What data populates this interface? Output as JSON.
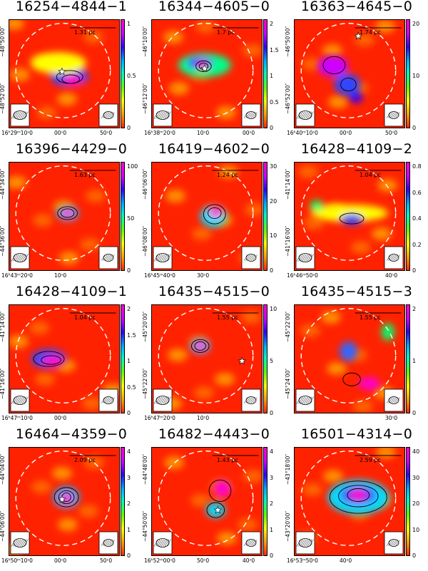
{
  "panels": [
    {
      "title": "16254−4844−1",
      "scale": "1.31 pc",
      "yticks": [
        "−48°50′00″",
        "−48°52′00″"
      ],
      "xticks": [
        "16ʰ29ᵐ10ˢ0",
        "00ˢ0",
        "50ˢ0"
      ],
      "cticks": [
        "1",
        "0.5",
        "0"
      ],
      "blobs": [
        [
          0.55,
          0.53,
          0.17,
          0.09,
          "#3344ff"
        ],
        [
          0.58,
          0.56,
          0.09,
          0.05,
          "#ff00cc"
        ],
        [
          0.45,
          0.4,
          0.25,
          0.1,
          "#ffff00"
        ]
      ],
      "contours": [
        [
          0.55,
          0.53,
          0.12,
          0.06
        ],
        [
          0.56,
          0.55,
          0.08,
          0.04
        ]
      ],
      "stars": [
        [
          0.48,
          0.48
        ]
      ]
    },
    {
      "title": "16344−4605−0",
      "scale": "1.7 pc",
      "yticks": [
        "−46°10′00″",
        "−46°12′00″"
      ],
      "xticks": [
        "16ʰ38ᵐ20ˢ0",
        "10ˢ0",
        "00ˢ0"
      ],
      "cticks": [
        "2",
        "1.5",
        "1",
        "0.5",
        "0"
      ],
      "blobs": [
        [
          0.48,
          0.42,
          0.24,
          0.11,
          "#00ff88"
        ],
        [
          0.44,
          0.4,
          0.12,
          0.06,
          "#3344ff"
        ],
        [
          0.46,
          0.42,
          0.05,
          0.04,
          "#ff00cc"
        ]
      ],
      "contours": [
        [
          0.47,
          0.43,
          0.07,
          0.05
        ],
        [
          0.47,
          0.43,
          0.04,
          0.03
        ]
      ],
      "stars": [
        [
          0.48,
          0.45
        ]
      ]
    },
    {
      "title": "16363−4645−0",
      "scale": "1.74 pc",
      "yticks": [
        "−46°50′00″",
        "−46°52′00″"
      ],
      "xticks": [
        "16ʰ40ᵐ10ˢ0",
        "00ˢ0",
        "50ˢ0"
      ],
      "cticks": [
        "20",
        "10",
        "0"
      ],
      "blobs": [
        [
          0.35,
          0.43,
          0.14,
          0.1,
          "#cc00ff"
        ],
        [
          0.48,
          0.6,
          0.12,
          0.1,
          "#3344ff"
        ],
        [
          0.56,
          0.72,
          0.06,
          0.05,
          "#3300ff"
        ]
      ],
      "contours": [
        [
          0.36,
          0.42,
          0.1,
          0.08
        ],
        [
          0.49,
          0.6,
          0.07,
          0.06
        ]
      ],
      "stars": [
        [
          0.58,
          0.15
        ]
      ]
    },
    {
      "title": "16396−4429−0",
      "scale": "1.63 pc",
      "yticks": [
        "−44°34′00″",
        "−44°36′00″"
      ],
      "xticks": [
        "16ʰ43ᵐ20ˢ0",
        "10ˢ0",
        ""
      ],
      "cticks": [
        "100",
        "50",
        "0"
      ],
      "blobs": [
        [
          0.53,
          0.47,
          0.1,
          0.07,
          "#00aaff"
        ],
        [
          0.53,
          0.47,
          0.05,
          0.04,
          "#ff00cc"
        ]
      ],
      "contours": [
        [
          0.53,
          0.47,
          0.09,
          0.06
        ],
        [
          0.53,
          0.47,
          0.06,
          0.04
        ]
      ],
      "stars": []
    },
    {
      "title": "16419−4602−0",
      "scale": "1.24 pc",
      "yticks": [
        "−46°06′00″",
        "−46°08′00″"
      ],
      "xticks": [
        "16ʰ45ᵐ40ˢ0",
        "30ˢ0",
        ""
      ],
      "cticks": [
        "30",
        "20",
        "10",
        "0"
      ],
      "blobs": [
        [
          0.56,
          0.5,
          0.12,
          0.1,
          "#00ddff"
        ],
        [
          0.58,
          0.46,
          0.06,
          0.05,
          "#ff00cc"
        ]
      ],
      "contours": [
        [
          0.57,
          0.48,
          0.1,
          0.09
        ],
        [
          0.57,
          0.47,
          0.06,
          0.05
        ]
      ],
      "stars": []
    },
    {
      "title": "16428−4109−2",
      "scale": "1.04 pc",
      "yticks": [
        "−41°14′00″",
        "−41°16′00″"
      ],
      "xticks": [
        "16ʰ46ᵐ50ˢ0",
        "",
        "40ˢ0"
      ],
      "cticks": [
        "0.8",
        "0.6",
        "0.4",
        "0.2",
        "0"
      ],
      "blobs": [
        [
          0.5,
          0.47,
          0.35,
          0.08,
          "#ffff00"
        ],
        [
          0.52,
          0.53,
          0.1,
          0.05,
          "#3344ff"
        ],
        [
          0.2,
          0.4,
          0.06,
          0.05,
          "#00ff66"
        ]
      ],
      "contours": [
        [
          0.52,
          0.52,
          0.11,
          0.05
        ]
      ],
      "stars": []
    },
    {
      "title": "16428−4109−1",
      "scale": "1.04 pc",
      "yticks": [
        "−41°14′00″",
        "−41°16′00″"
      ],
      "xticks": [
        "16ʰ47ᵐ10ˢ0",
        "00ˢ0",
        ""
      ],
      "cticks": [
        "2",
        "1.5",
        "1",
        "0.5",
        "0"
      ],
      "blobs": [
        [
          0.36,
          0.5,
          0.16,
          0.09,
          "#3344ff"
        ],
        [
          0.4,
          0.52,
          0.1,
          0.05,
          "#ff00cc"
        ]
      ],
      "contours": [
        [
          0.36,
          0.5,
          0.14,
          0.07
        ],
        [
          0.38,
          0.51,
          0.09,
          0.04
        ]
      ],
      "stars": []
    },
    {
      "title": "16435−4515−0",
      "scale": "1.55 pc",
      "yticks": [
        "−45°20′00″",
        "−45°22′00″"
      ],
      "xticks": [
        "16ʰ47ᵐ20ˢ0",
        "10ˢ0",
        ""
      ],
      "cticks": [
        "10",
        "5",
        "0"
      ],
      "blobs": [
        [
          0.44,
          0.38,
          0.09,
          0.07,
          "#00aaff"
        ],
        [
          0.44,
          0.38,
          0.05,
          0.04,
          "#ff00cc"
        ]
      ],
      "contours": [
        [
          0.44,
          0.38,
          0.08,
          0.06
        ],
        [
          0.44,
          0.38,
          0.05,
          0.04
        ]
      ],
      "stars": [
        [
          0.82,
          0.52
        ]
      ]
    },
    {
      "title": "16435−4515−3",
      "scale": "1.55 pc",
      "yticks": [
        "−45°22′00″",
        "−45°24′00″"
      ],
      "xticks": [
        "",
        "",
        "30ˢ0"
      ],
      "cticks": [
        "2",
        "1",
        "0"
      ],
      "blobs": [
        [
          0.49,
          0.43,
          0.08,
          0.09,
          "#3366ff"
        ],
        [
          0.68,
          0.73,
          0.1,
          0.06,
          "#ff00cc"
        ],
        [
          0.85,
          0.25,
          0.06,
          0.08,
          "#00ff66"
        ]
      ],
      "contours": [
        [
          0.52,
          0.69,
          0.08,
          0.06
        ]
      ],
      "stars": []
    },
    {
      "title": "16464−4359−0",
      "scale": "2.09 pc",
      "yticks": [
        "−44°04′00″",
        "−44°06′00″"
      ],
      "xticks": [
        "16ʰ50ᵐ10ˢ0",
        "00ˢ0",
        "50ˢ0"
      ],
      "cticks": [
        "4",
        "3",
        "2",
        "1",
        "0"
      ],
      "blobs": [
        [
          0.52,
          0.46,
          0.12,
          0.1,
          "#00aaff"
        ],
        [
          0.52,
          0.47,
          0.06,
          0.05,
          "#ff00cc"
        ]
      ],
      "contours": [
        [
          0.52,
          0.46,
          0.11,
          0.09
        ],
        [
          0.52,
          0.46,
          0.07,
          0.06
        ],
        [
          0.52,
          0.46,
          0.04,
          0.04
        ]
      ],
      "stars": [
        [
          0.48,
          0.48
        ]
      ]
    },
    {
      "title": "16482−4443−0",
      "scale": "1.43 pc",
      "yticks": [
        "−44°48′00″",
        "−44°50′00″"
      ],
      "xticks": [
        "16ʰ52ᵐ00ˢ0",
        "50ˢ0",
        "40ˢ0"
      ],
      "cticks": [
        "4",
        "3",
        "2",
        "1",
        "0"
      ],
      "blobs": [
        [
          0.64,
          0.38,
          0.08,
          0.08,
          "#ff00cc"
        ],
        [
          0.58,
          0.58,
          0.09,
          0.07,
          "#00ddff"
        ]
      ],
      "contours": [
        [
          0.62,
          0.4,
          0.1,
          0.1
        ],
        [
          0.58,
          0.58,
          0.08,
          0.07
        ]
      ],
      "stars": [
        [
          0.6,
          0.58
        ]
      ]
    },
    {
      "title": "16501−4314−0",
      "scale": "2.59 pc",
      "yticks": [
        "−43°18′00″",
        "−43°20′00″"
      ],
      "xticks": [
        "16ʰ53ᵐ50ˢ0",
        "40ˢ0",
        ""
      ],
      "cticks": [
        "40",
        "30",
        "20",
        "10",
        "0"
      ],
      "blobs": [
        [
          0.58,
          0.46,
          0.28,
          0.16,
          "#00ddff"
        ],
        [
          0.58,
          0.44,
          0.16,
          0.09,
          "#3344ff"
        ],
        [
          0.58,
          0.44,
          0.08,
          0.05,
          "#ff00cc"
        ]
      ],
      "contours": [
        [
          0.58,
          0.46,
          0.26,
          0.15
        ],
        [
          0.58,
          0.45,
          0.18,
          0.1
        ],
        [
          0.58,
          0.44,
          0.1,
          0.06
        ]
      ],
      "stars": []
    }
  ]
}
